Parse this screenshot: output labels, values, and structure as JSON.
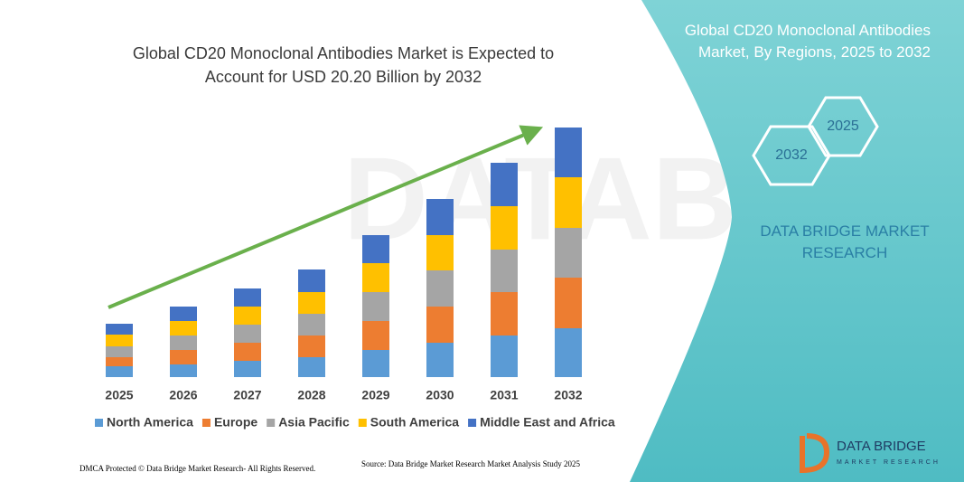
{
  "chart_data": {
    "type": "bar",
    "stacked": true,
    "title": "Global CD20 Monoclonal Antibodies Market is Expected to Account for USD 20.20 Billion by 2032",
    "categories": [
      "2025",
      "2026",
      "2027",
      "2028",
      "2029",
      "2030",
      "2031",
      "2032"
    ],
    "series": [
      {
        "name": "North America",
        "color": "#5b9bd5",
        "values": [
          12,
          14,
          18,
          22,
          30,
          38,
          46,
          54
        ]
      },
      {
        "name": "Europe",
        "color": "#ed7d31",
        "values": [
          10,
          16,
          20,
          24,
          32,
          40,
          48,
          56
        ]
      },
      {
        "name": "Asia Pacific",
        "color": "#a5a5a5",
        "values": [
          12,
          16,
          20,
          24,
          32,
          40,
          47,
          55
        ]
      },
      {
        "name": "South America",
        "color": "#ffc000",
        "values": [
          13,
          16,
          20,
          24,
          32,
          39,
          48,
          56
        ]
      },
      {
        "name": "Middle East and Africa",
        "color": "#4472c4",
        "values": [
          12,
          16,
          20,
          25,
          31,
          40,
          48,
          55
        ]
      }
    ]
  },
  "panel": {
    "title": "Global CD20 Monoclonal Antibodies Market, By Regions, 2025 to 2032",
    "hex_start": "2025",
    "hex_end": "2032",
    "brand": "DATA BRIDGE MARKET RESEARCH",
    "logo": "DATA BRIDGE",
    "logo_sub": "MARKET RESEARCH"
  },
  "footer": {
    "dmca": "DMCA Protected © Data Bridge Market Research- All Rights Reserved.",
    "source": "Source: Data Bridge Market Research  Market Analysis Study 2025"
  }
}
